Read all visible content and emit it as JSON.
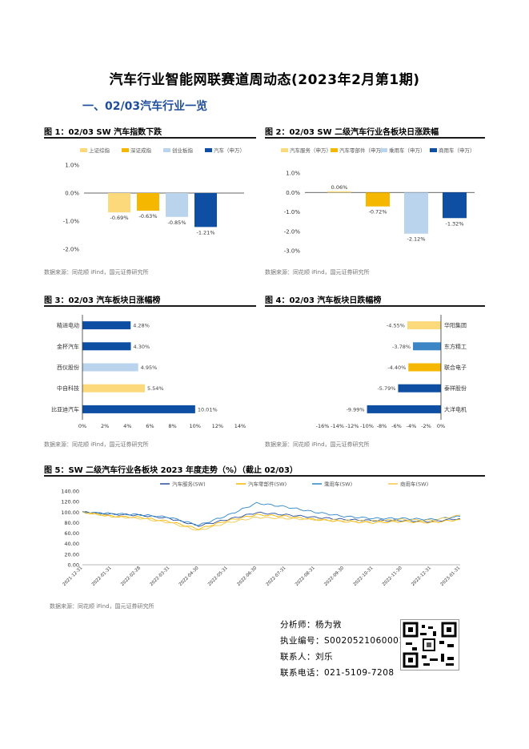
{
  "title": "汽车行业智能网联赛道周动态(2023年2月第1期)",
  "section": "一、02/03汽车行业一览",
  "figures": {
    "fig1": {
      "title": "图 1：02/03 SW 汽车指数下跌",
      "source": "数据来源：同花顺 iFind，国元证券研究所",
      "chart_data": {
        "type": "bar",
        "categories": [
          "上证综指",
          "深证成指",
          "创业板指",
          "汽车（申万）"
        ],
        "values": [
          -0.69,
          -0.63,
          -0.85,
          -1.21
        ],
        "value_labels": [
          "-0.69%",
          "-0.63%",
          "-0.85%",
          "-1.21%"
        ],
        "colors": [
          "#fcd97a",
          "#f5b700",
          "#b9d4ec",
          "#0e4fa3"
        ],
        "yticks": [
          "1.0%",
          "0.0%",
          "-1.0%",
          "-2.0%"
        ],
        "ylim": [
          -2.0,
          1.0
        ]
      }
    },
    "fig2": {
      "title": "图 2：02/03 SW 二级汽车行业各板块日涨跌幅",
      "source": "数据来源：同花顺 iFind，国元证券研究所",
      "chart_data": {
        "type": "bar",
        "categories": [
          "汽车服务（申万）",
          "汽车零部件（申万）",
          "乘用车（申万）",
          "商用车（申万）"
        ],
        "values": [
          0.06,
          -0.72,
          -2.12,
          -1.32
        ],
        "value_labels": [
          "0.06%",
          "-0.72%",
          "-2.12%",
          "-1.32%"
        ],
        "colors": [
          "#fcd97a",
          "#f5b700",
          "#b9d4ec",
          "#0e4fa3"
        ],
        "yticks": [
          "1.0%",
          "0.0%",
          "-1.0%",
          "-2.0%",
          "-3.0%"
        ],
        "ylim": [
          -3.0,
          1.0
        ]
      }
    },
    "fig3": {
      "title": "图 3：02/03 汽车板块日涨幅榜",
      "source": "数据来源：同花顺 iFind，国元证券研究所",
      "chart_data": {
        "type": "bar",
        "categories": [
          "精进电动",
          "金杯汽车",
          "西仪股份",
          "中自科技",
          "比亚迪汽车"
        ],
        "values": [
          4.28,
          4.3,
          4.95,
          5.54,
          10.01
        ],
        "value_labels": [
          "4.28%",
          "4.30%",
          "4.95%",
          "5.54%",
          "10.01%"
        ],
        "colors": [
          "#0e4fa3",
          "#0e4fa3",
          "#b9d4ec",
          "#fcd97a",
          "#0e4fa3"
        ],
        "xticks": [
          "0%",
          "2%",
          "4%",
          "6%",
          "8%",
          "10%",
          "12%",
          "14%"
        ],
        "xlim": [
          0,
          14
        ]
      }
    },
    "fig4": {
      "title": "图 4：02/03 汽车板块日跌幅榜",
      "source": "数据来源：同花顺 iFind，国元证券研究所",
      "chart_data": {
        "type": "bar",
        "categories": [
          "华阳集团",
          "东方精工",
          "联合电子",
          "泰祥股份",
          "大洋电机"
        ],
        "values": [
          -4.55,
          -3.78,
          -4.4,
          -5.79,
          -9.99
        ],
        "value_labels": [
          "-4.55%",
          "-3.78%",
          "-4.40%",
          "-5.79%",
          "-9.99%"
        ],
        "colors": [
          "#fcd97a",
          "#3d86c6",
          "#f5b700",
          "#0e4fa3",
          "#0e4fa3"
        ],
        "xticks": [
          "-16%",
          "-14%",
          "-12%",
          "-10%",
          "-8%",
          "-6%",
          "-4%",
          "-2%",
          "0%"
        ],
        "xlim": [
          -16,
          0
        ]
      }
    },
    "fig5": {
      "title": "图 5：SW 二级汽车行业各板块 2023 年度走势（%）（截止 02/03）",
      "source": "数据来源：同花顺 iFind，国元证券研究所",
      "chart_data": {
        "type": "line",
        "legend": [
          "汽车服务(SW)",
          "汽车零部件(SW)",
          "乘用车(SW)",
          "商用车(SW)"
        ],
        "colors": [
          "#2a4d9c",
          "#f5b700",
          "#2e86c8",
          "#f2c94c"
        ],
        "yticks": [
          "140.00",
          "120.00",
          "100.00",
          "80.00",
          "60.00",
          "40.00",
          "20.00",
          "0.00"
        ],
        "ylim": [
          0,
          140
        ],
        "xticks": [
          "2021-12-31",
          "2022-01-31",
          "2022-02-28",
          "2022-03-31",
          "2022-04-30",
          "2022-05-31",
          "2022-06-30",
          "2022-07-31",
          "2022-08-31",
          "2022-09-30",
          "2022-10-31",
          "2022-11-30",
          "2022-12-31",
          "2023-01-31"
        ],
        "series": [
          {
            "name": "汽车服务(SW)",
            "values": [
              100,
              96,
              94,
              88,
              74,
              86,
              99,
              95,
              90,
              86,
              84,
              84,
              82,
              88
            ]
          },
          {
            "name": "汽车零部件(SW)",
            "values": [
              100,
              92,
              90,
              82,
              68,
              84,
              95,
              92,
              86,
              82,
              80,
              82,
              80,
              86
            ]
          },
          {
            "name": "乘用车(SW)",
            "values": [
              100,
              97,
              95,
              90,
              75,
              94,
              117,
              110,
              100,
              92,
              88,
              88,
              86,
              92
            ]
          },
          {
            "name": "商用车(SW)",
            "values": [
              100,
              92,
              88,
              80,
              65,
              80,
              90,
              88,
              86,
              84,
              83,
              86,
              84,
              94
            ]
          }
        ]
      }
    }
  },
  "info": {
    "analyst": "分析师：杨为敩",
    "license": "执业编号：S0020521060001",
    "contact": "联系人：刘乐",
    "phone": "联系电话：021-5109-7208"
  }
}
